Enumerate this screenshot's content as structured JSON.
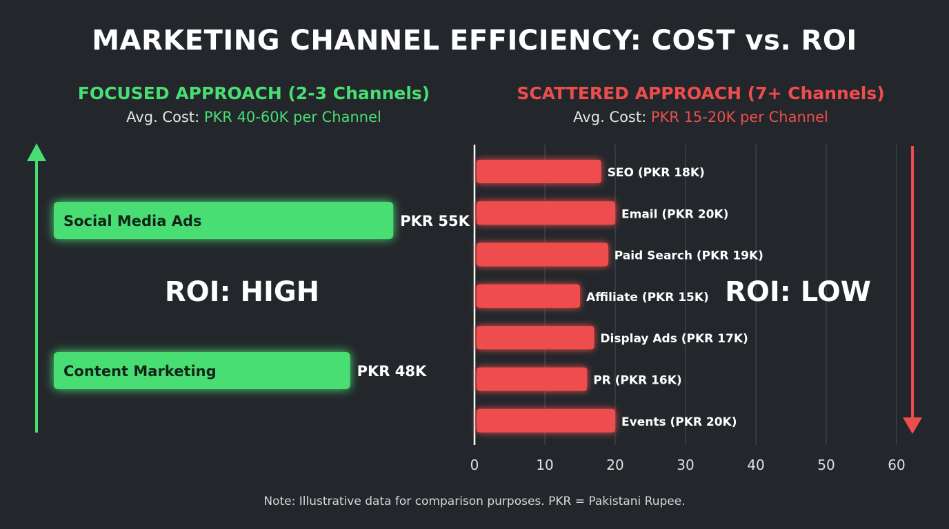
{
  "title": "MARKETING CHANNEL EFFICIENCY: COST vs. ROI",
  "left_panel": {
    "heading": "FOCUSED APPROACH (2-3 Channels)",
    "cost_prefix": "Avg. Cost:",
    "cost_value": "PKR 40-60K per Channel",
    "roi_label": "ROI: HIGH"
  },
  "right_panel": {
    "heading": "SCATTERED APPROACH (7+ Channels)",
    "cost_prefix": "Avg. Cost:",
    "cost_value": "PKR 15-20K per Channel",
    "roi_label": "ROI: LOW"
  },
  "note": "Note: Illustrative data for comparison purposes. PKR = Pakistani Rupee.",
  "colors": {
    "background": "#23272b",
    "focused": "#49de73",
    "scattered": "#ef4d4d",
    "text": "#ffffff",
    "grid": "#4a4f55"
  },
  "chart_data": [
    {
      "type": "bar",
      "orientation": "horizontal",
      "categories": [
        "Social Media Ads",
        "Content Marketing"
      ],
      "values": [
        55,
        48
      ],
      "value_labels": [
        "PKR 55K",
        "PKR 48K"
      ],
      "unit": "PKR thousand",
      "legend": "none",
      "grid": false
    },
    {
      "type": "bar",
      "orientation": "horizontal",
      "categories": [
        "SEO",
        "Email",
        "Paid Search",
        "Affiliate",
        "Display Ads",
        "PR",
        "Events"
      ],
      "values": [
        18,
        20,
        19,
        15,
        17,
        16,
        20
      ],
      "bar_labels": [
        "SEO (PKR 18K)",
        "Email (PKR 20K)",
        "Paid Search (PKR 19K)",
        "Affiliate (PKR 15K)",
        "Display Ads (PKR 17K)",
        "PR (PKR 16K)",
        "Events (PKR 20K)"
      ],
      "xlim": [
        0,
        60
      ],
      "xticks": [
        0,
        10,
        20,
        30,
        40,
        50,
        60
      ],
      "grid": true,
      "legend": "none"
    }
  ]
}
